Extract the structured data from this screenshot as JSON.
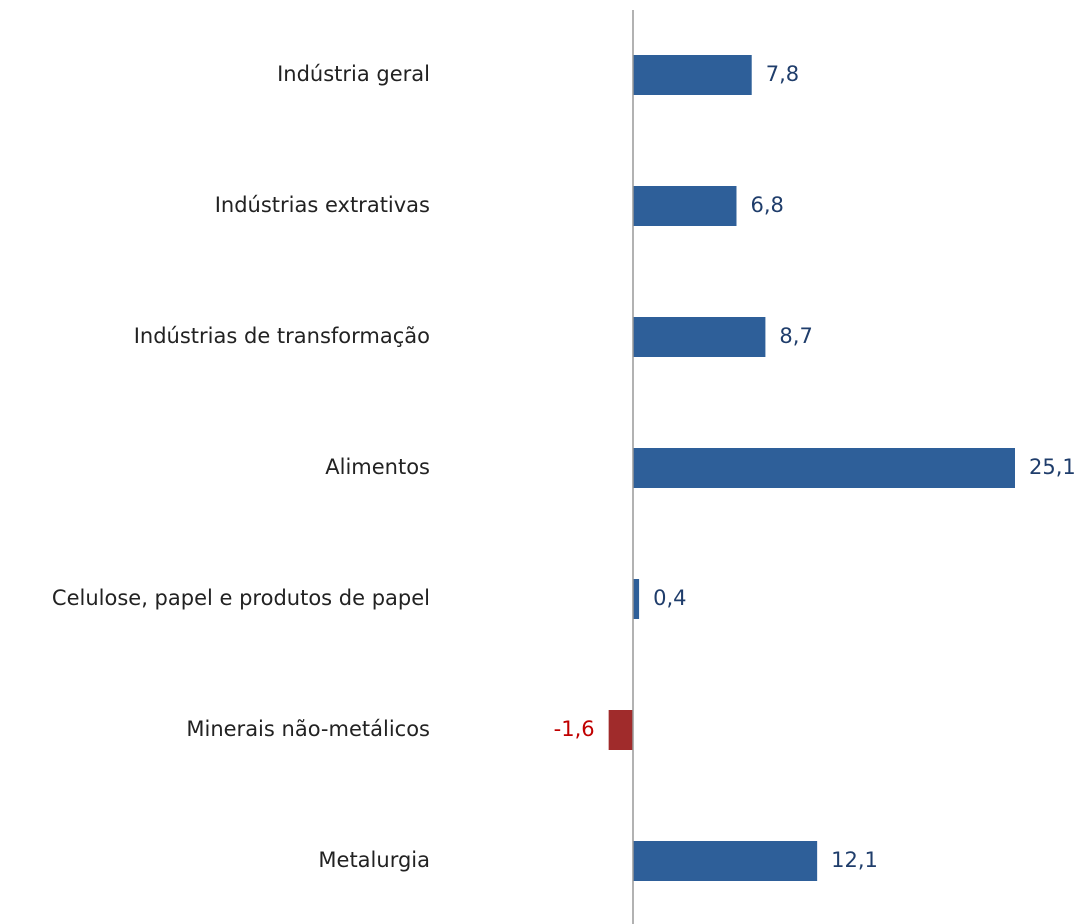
{
  "chart_data": {
    "type": "barh",
    "categories": [
      "Indústria geral",
      "Indústrias extrativas",
      "Indústrias de transformação",
      "Alimentos",
      "Celulose, papel e produtos de papel",
      "Minerais não-metálicos",
      "Metalurgia"
    ],
    "values": [
      7.8,
      6.8,
      8.7,
      25.1,
      0.4,
      -1.6,
      12.1
    ],
    "value_labels": [
      "7,8",
      "6,8",
      "8,7",
      "25,1",
      "0,4",
      "-1,6",
      "12,1"
    ],
    "color": "#2e5f99",
    "negative_color": "#a02b2b",
    "label_color": "#1f3d6b",
    "negative_label_color": "#c00000"
  }
}
